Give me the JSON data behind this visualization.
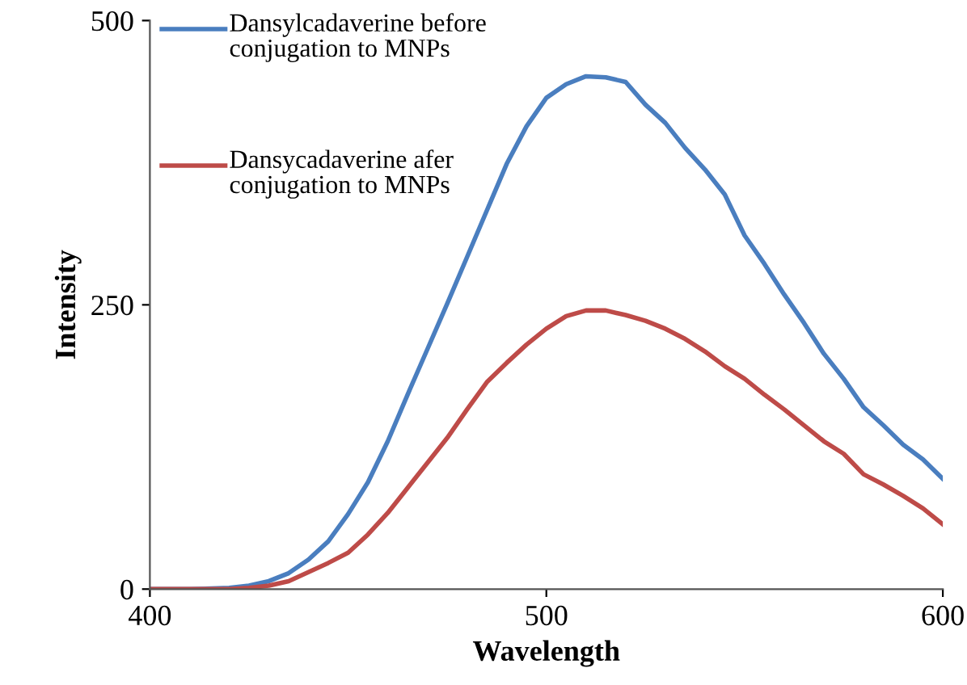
{
  "chart_data": {
    "type": "line",
    "xlabel": "Wavelength",
    "ylabel": "Intensity",
    "xlim": [
      400,
      600
    ],
    "xticks": [
      400,
      500,
      600
    ],
    "ylim": [
      0,
      500
    ],
    "yticks": [
      0,
      250,
      500
    ],
    "grid": false,
    "legend": "top left",
    "marker": "none",
    "line_style": "solid",
    "x": [
      400,
      410,
      420,
      425,
      430,
      435,
      440,
      445,
      450,
      455,
      460,
      465,
      470,
      475,
      480,
      485,
      490,
      495,
      500,
      505,
      510,
      515,
      520,
      525,
      530,
      535,
      540,
      545,
      550,
      555,
      560,
      565,
      570,
      575,
      580,
      585,
      590,
      595,
      600
    ],
    "series": [
      {
        "name": "Dansylcadaverine before conjugation to MNPs",
        "color": "#4a7ebf",
        "values": [
          0,
          0,
          1,
          3,
          7,
          14,
          26,
          42,
          66,
          94,
          130,
          171,
          211,
          251,
          292,
          333,
          374,
          407,
          432,
          444,
          451,
          450,
          446,
          426,
          410,
          388,
          369,
          347,
          311,
          286,
          259,
          234,
          207,
          185,
          160,
          144,
          127,
          114,
          97
        ]
      },
      {
        "name": "Dansycadaverine afer conjugation to MNPs",
        "color": "#be4b48",
        "values": [
          0,
          0,
          0,
          1,
          3,
          7,
          15,
          23,
          32,
          48,
          67,
          89,
          111,
          133,
          158,
          182,
          199,
          215,
          229,
          240,
          245,
          245,
          241,
          236,
          229,
          220,
          209,
          196,
          185,
          171,
          158,
          144,
          130,
          119,
          101,
          92,
          82,
          71,
          57
        ]
      }
    ]
  }
}
